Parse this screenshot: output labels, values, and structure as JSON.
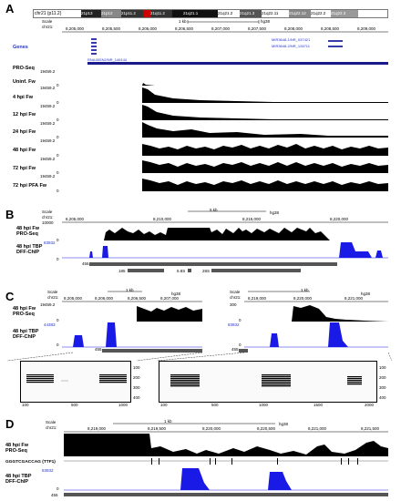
{
  "panelA": {
    "letter": "A",
    "ideogram": {
      "chrom": "chr21 (p11.2)",
      "bands": [
        "21p13",
        "21p12",
        "21p11.2",
        "21q11.2",
        "21q21.1",
        "21q21.2",
        "21q21.3",
        "21q22.11",
        "21q22.12",
        "21q22.2",
        "21q22.3"
      ]
    },
    "scale_label": "Scale",
    "chr_label": "chr21:",
    "scale_bar": "1 kb",
    "assembly": "hg38",
    "coords": [
      "8,205,000",
      "8,205,500",
      "8,206,000",
      "8,206,500",
      "8,207,000",
      "8,207,500",
      "8,208,000",
      "8,208,500",
      "8,209,000"
    ],
    "genes_label": "Genes",
    "gene_names": [
      "MIR3648-1/NR_037421",
      "MIR3648-2/NR_128711"
    ],
    "gene_long": "RNA45SN2/NR_146144",
    "proseq_label": "PRO-Seq",
    "ymax": "19459.2",
    "ymin": "0",
    "tracks": [
      "Uninf. Fw",
      "4 hpi Fw",
      "12 hpi Fw",
      "24 hpi Fw",
      "48 hpi Fw",
      "72 hpi Fw",
      "72 hpi PFA Fw"
    ]
  },
  "panelB": {
    "letter": "B",
    "scale_label": "Scale",
    "chr_label": "chr21:",
    "scale_bar": "5 kb",
    "assembly": "hg38",
    "coords": [
      "8,205,000",
      "8,210,000",
      "8,215,000",
      "8,220,000"
    ],
    "track1": "48 hpi Fw\nPRO-Seq",
    "track1_max": "10000",
    "track1_min": "0",
    "track2": "48 hpi TBP\nDFF-ChIP",
    "track2_max": "83932",
    "track2_min": "0",
    "feat": [
      "455",
      "185",
      "5.8S",
      "28S"
    ]
  },
  "panelC": {
    "letter": "C",
    "left": {
      "scale_label": "Scale",
      "chr_label": "chr21:",
      "scale_bar": "1 kb",
      "assembly": "hg38",
      "coords": [
        "8,205,000",
        "8,206,000",
        "8,206,500",
        "8,207,000"
      ],
      "track1": "48 hpi Fw\nPRO-Seq",
      "track1_max": "19459.2",
      "track1_min": "0",
      "track2": "48 hpi TBP\nDFF-ChIP",
      "track2_max": "44383",
      "track2_min": "0",
      "feat": "455"
    },
    "right": {
      "scale_label": "Scale",
      "chr_label": "chr21:",
      "scale_bar": "1 kb",
      "assembly": "hg38",
      "coords": [
        "8,219,000",
        "8,220,000",
        "8,221,000"
      ],
      "track1_max": "300",
      "track1_min": "0",
      "track2_max": "83932",
      "track2_min": "0",
      "feat": "455"
    },
    "heat_left": {
      "x_ticks": [
        "100",
        "500",
        "1000"
      ],
      "y_ticks": [
        "100",
        "200",
        "300",
        "400"
      ]
    },
    "heat_right": {
      "x_ticks": [
        "100",
        "500",
        "1000",
        "1500",
        "2000"
      ],
      "y_ticks": [
        "100",
        "200",
        "300",
        "400"
      ]
    }
  },
  "panelD": {
    "letter": "D",
    "scale_label": "Scale",
    "chr_label": "chr21:",
    "scale_bar": "1 kb",
    "assembly": "hg38",
    "coords": [
      "8,219,000",
      "8,219,500",
      "8,220,000",
      "8,220,500",
      "8,221,000",
      "8,221,500"
    ],
    "track1": "48 hpi Fw\nPRO-Seq",
    "motif": "GGGTCGACCAG (TTF1)",
    "track2": "48 hpi TBP\nDFF-ChIP",
    "track2_max": "83932",
    "track2_min": "0",
    "feat": "455"
  },
  "colors": {
    "signal": "#000000",
    "chip": "#1a1ae6",
    "gene": "#3a3aa8",
    "feature": "#555555"
  }
}
